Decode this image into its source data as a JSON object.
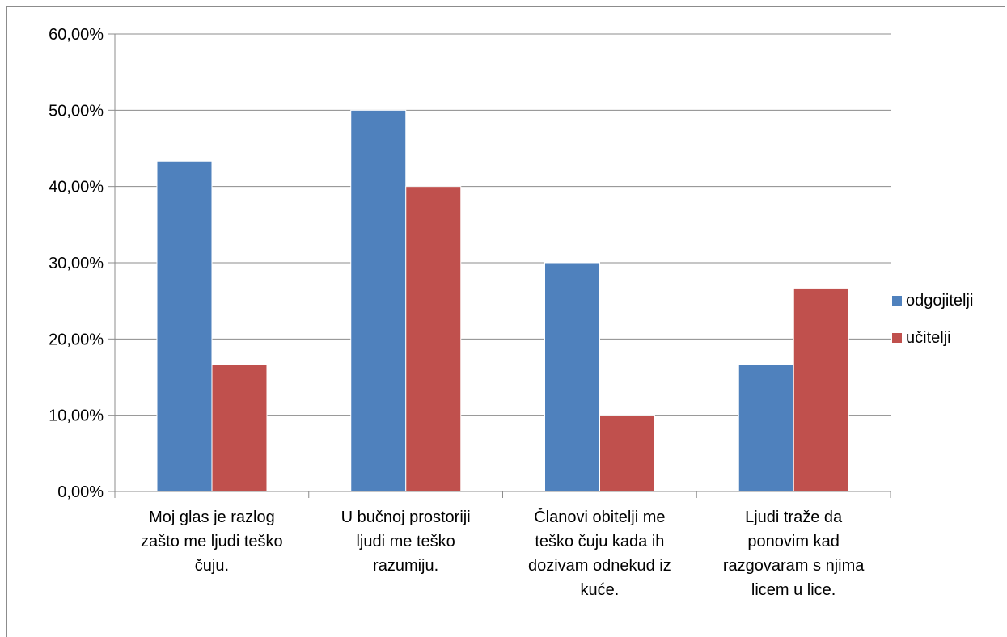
{
  "chart_data": {
    "type": "bar",
    "categories": [
      [
        "Moj glas je razlog",
        "zašto me ljudi teško",
        "čuju."
      ],
      [
        "U bučnoj prostoriji",
        "ljudi me teško",
        "razumiju."
      ],
      [
        "Članovi obitelji me",
        "teško čuju kada ih",
        "dozivam odnekud iz",
        "kuće."
      ],
      [
        "Ljudi traže da",
        "ponovim kad",
        "razgovaram s njima",
        "licem u lice."
      ]
    ],
    "series": [
      {
        "name": "odgojitelji",
        "color": "#4f81bd",
        "values": [
          43.33,
          50.0,
          30.0,
          16.67
        ]
      },
      {
        "name": "učitelji",
        "color": "#c0504d",
        "values": [
          16.67,
          40.0,
          10.0,
          26.67
        ]
      }
    ],
    "yticks": [
      "0,00%",
      "10,00%",
      "20,00%",
      "30,00%",
      "40,00%",
      "50,00%",
      "60,00%"
    ],
    "ylim": [
      0,
      60
    ],
    "grid": true,
    "legend_position": "right"
  }
}
